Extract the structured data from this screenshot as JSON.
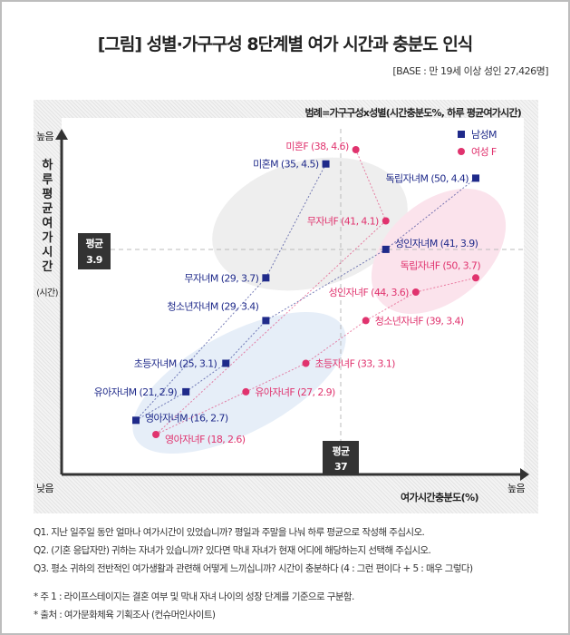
{
  "title": "[그림] 성별·가구구성 8단계별 여가 시간과 충분도 인식",
  "base": "[BASE : 만 19세 이상 성인 27,426명]",
  "chart_data": {
    "type": "scatter",
    "legend_title": "범례=가구구성x성별(시간충분도%, 하루 평균여가시간)",
    "xlabel": "여가시간충분도(%)",
    "ylabel": "하루평균여가시간",
    "ylabel_unit": "(시간)",
    "y_high": "높음",
    "y_low": "낮음",
    "x_high": "높음",
    "x_mean": {
      "label": "평균",
      "value": 37
    },
    "y_mean": {
      "label": "평균",
      "value": 3.9
    },
    "legend_position": "top-right",
    "series": [
      {
        "name": "남성M",
        "color": "#1f2a8a",
        "marker": "square",
        "points": [
          {
            "label": "미혼M (35, 4.5)",
            "x": 35,
            "y": 4.5
          },
          {
            "label": "무자녀M (29, 3.7)",
            "x": 29,
            "y": 3.7
          },
          {
            "label": "영아자녀M (16, 2.7)",
            "x": 16,
            "y": 2.7
          },
          {
            "label": "유아자녀M (21, 2.9)",
            "x": 21,
            "y": 2.9
          },
          {
            "label": "초등자녀M (25, 3.1)",
            "x": 25,
            "y": 3.1
          },
          {
            "label": "청소년자녀M (29, 3.4)",
            "x": 29,
            "y": 3.4
          },
          {
            "label": "성인자녀M (41, 3.9)",
            "x": 41,
            "y": 3.9
          },
          {
            "label": "독립자녀M (50, 4.4)",
            "x": 50,
            "y": 4.4
          }
        ]
      },
      {
        "name": "여성 F",
        "color": "#e0336e",
        "marker": "circle",
        "points": [
          {
            "label": "미혼F (38, 4.6)",
            "x": 38,
            "y": 4.6
          },
          {
            "label": "무자녀F (41, 4.1)",
            "x": 41,
            "y": 4.1
          },
          {
            "label": "영아자녀F (18, 2.6)",
            "x": 18,
            "y": 2.6
          },
          {
            "label": "유아자녀F (27, 2.9)",
            "x": 27,
            "y": 2.9
          },
          {
            "label": "초등자녀F (33, 3.1)",
            "x": 33,
            "y": 3.1
          },
          {
            "label": "청소년자녀F (39, 3.4)",
            "x": 39,
            "y": 3.4
          },
          {
            "label": "성인자녀F (44, 3.6)",
            "x": 44,
            "y": 3.6
          },
          {
            "label": "독립자녀F (50, 3.7)",
            "x": 50,
            "y": 3.7
          }
        ]
      }
    ]
  },
  "notes": {
    "q1": "Q1. 지난 일주일 동안 얼마나 여가시간이 있었습니까? 평일과 주말을 나눠 하루 평균으로 작성해 주십시오.",
    "q2": "Q2. (기혼 응답자만) 귀하는 자녀가 있습니까? 있다면 막내 자녀가 현재 어디에 해당하는지 선택해 주십시오.",
    "q3": "Q3. 평소 귀하의 전반적인 여가생활과 관련해 어떻게 느끼십니까? 시간이 충분하다 (4 : 그런 편이다 + 5 : 매우 그렇다)",
    "n1": "* 주 1 : 라이프스테이지는 결혼 여부 및 막내 자녀 나이의 성장 단계를 기준으로 구분함.",
    "n2": "* 출처 : 여가문화체육 기획조사 (컨슈머인사이트)"
  }
}
